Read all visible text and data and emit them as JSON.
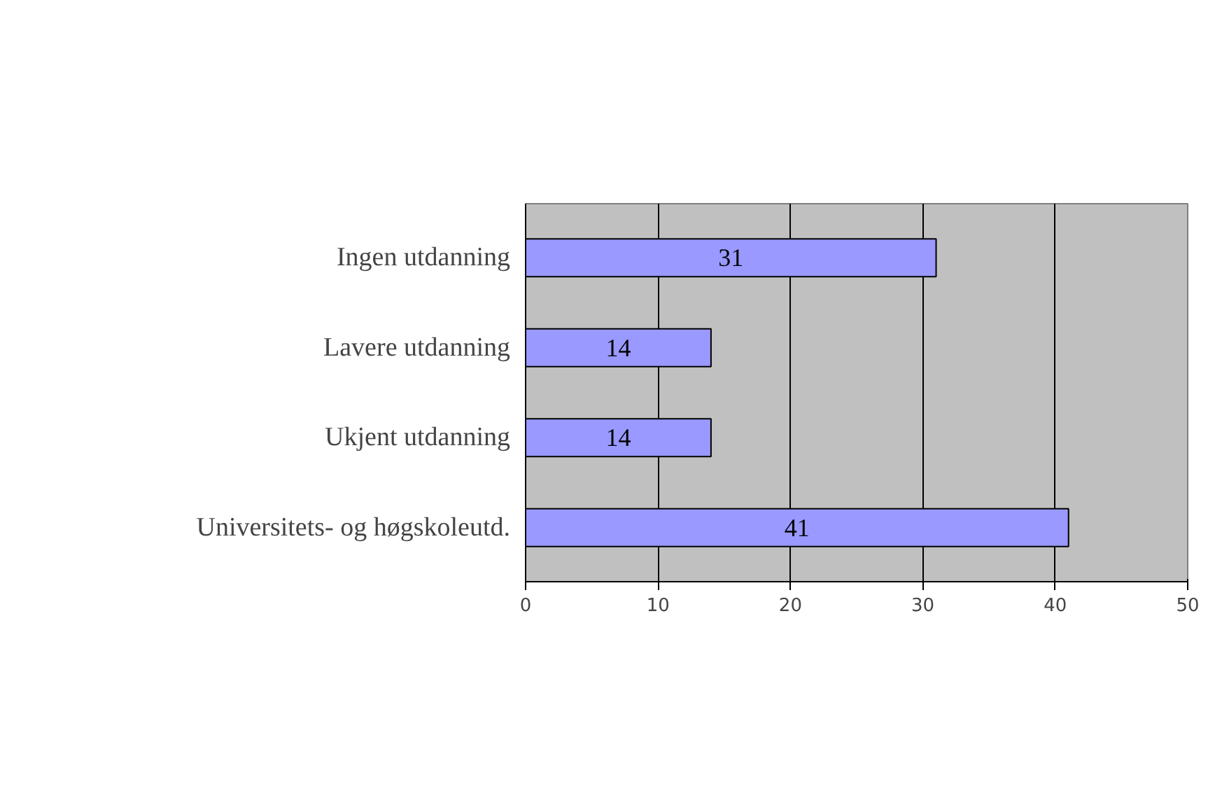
{
  "chart_data": {
    "type": "bar",
    "orientation": "horizontal",
    "categories": [
      "Ingen utdanning",
      "Lavere utdanning",
      "Ukjent utdanning",
      "Universitets- og høgskoleutd."
    ],
    "values": [
      31,
      14,
      14,
      41
    ],
    "color": "#9999ff",
    "xlim": [
      0,
      50
    ],
    "xticks": [
      0,
      10,
      20,
      30,
      40,
      50
    ],
    "grid": "x",
    "data_labels": true
  }
}
